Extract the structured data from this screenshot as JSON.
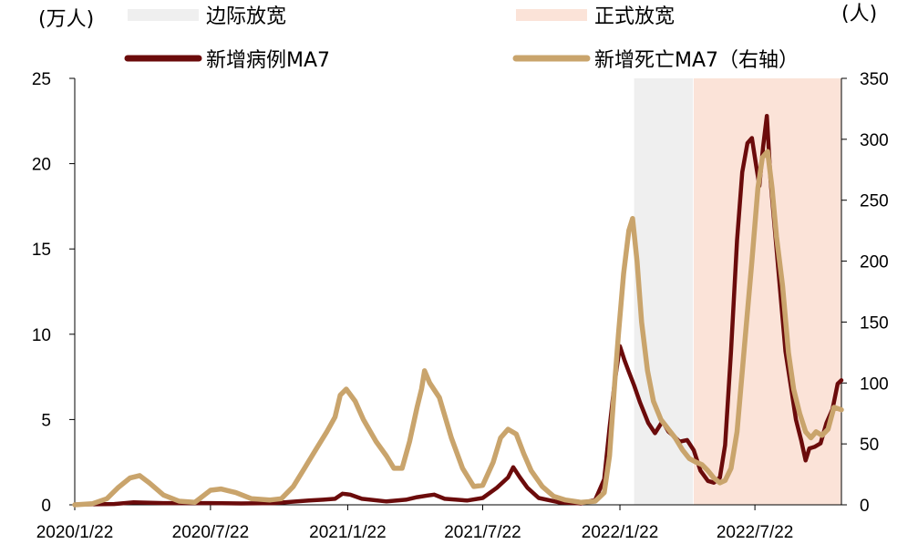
{
  "chart_data": {
    "type": "line",
    "left_unit": "(万人)",
    "right_unit": "(人)",
    "x_tick_labels": [
      "2020/1/22",
      "2020/7/22",
      "2021/1/22",
      "2021/7/22",
      "2022/1/22",
      "2022/7/22"
    ],
    "x_tick_dates": [
      "2020-01-22",
      "2020-07-22",
      "2021-01-22",
      "2021-07-22",
      "2022-01-22",
      "2022-07-22"
    ],
    "x_range": [
      "2020-01-22",
      "2022-11-15"
    ],
    "y_left": {
      "min": 0,
      "max": 25,
      "ticks": [
        0,
        5,
        10,
        15,
        20,
        25
      ]
    },
    "y_right": {
      "min": 0,
      "max": 350,
      "ticks": [
        0,
        50,
        100,
        150,
        200,
        250,
        300,
        350
      ]
    },
    "grid": false,
    "legend_placement": "top",
    "shaded_periods": [
      {
        "name": "边际放宽",
        "start": "2022-02-10",
        "end": "2022-04-30",
        "color": "#efefef"
      },
      {
        "name": "正式放宽",
        "start": "2022-05-01",
        "end": "2022-11-15",
        "color": "#fbe3d8"
      }
    ],
    "series": [
      {
        "name": "新增病例MA7",
        "axis": "left",
        "color": "#6b0b0b",
        "points": [
          [
            "2020-01-22",
            0.02
          ],
          [
            "2020-03-15",
            0.05
          ],
          [
            "2020-04-10",
            0.15
          ],
          [
            "2020-05-20",
            0.1
          ],
          [
            "2020-07-22",
            0.1
          ],
          [
            "2020-09-01",
            0.08
          ],
          [
            "2020-10-15",
            0.1
          ],
          [
            "2020-12-01",
            0.25
          ],
          [
            "2020-12-20",
            0.3
          ],
          [
            "2021-01-05",
            0.35
          ],
          [
            "2021-01-15",
            0.65
          ],
          [
            "2021-01-25",
            0.6
          ],
          [
            "2021-02-10",
            0.35
          ],
          [
            "2021-03-15",
            0.2
          ],
          [
            "2021-04-10",
            0.3
          ],
          [
            "2021-04-25",
            0.45
          ],
          [
            "2021-05-10",
            0.55
          ],
          [
            "2021-05-18",
            0.6
          ],
          [
            "2021-06-01",
            0.35
          ],
          [
            "2021-07-01",
            0.25
          ],
          [
            "2021-07-22",
            0.4
          ],
          [
            "2021-08-10",
            1.0
          ],
          [
            "2021-08-25",
            1.6
          ],
          [
            "2021-09-01",
            2.2
          ],
          [
            "2021-09-10",
            1.6
          ],
          [
            "2021-09-20",
            1.0
          ],
          [
            "2021-10-05",
            0.4
          ],
          [
            "2021-11-01",
            0.15
          ],
          [
            "2021-12-01",
            0.08
          ],
          [
            "2021-12-20",
            0.3
          ],
          [
            "2022-01-01",
            1.5
          ],
          [
            "2022-01-08",
            4.5
          ],
          [
            "2022-01-15",
            7.2
          ],
          [
            "2022-01-22",
            9.3
          ],
          [
            "2022-01-28",
            8.5
          ],
          [
            "2022-02-03",
            7.8
          ],
          [
            "2022-02-10",
            7.0
          ],
          [
            "2022-02-18",
            6.0
          ],
          [
            "2022-03-01",
            4.8
          ],
          [
            "2022-03-10",
            4.2
          ],
          [
            "2022-03-20",
            4.9
          ],
          [
            "2022-03-28",
            4.3
          ],
          [
            "2022-04-05",
            4.0
          ],
          [
            "2022-04-12",
            3.7
          ],
          [
            "2022-04-22",
            3.8
          ],
          [
            "2022-05-01",
            3.2
          ],
          [
            "2022-05-10",
            2.0
          ],
          [
            "2022-05-20",
            1.4
          ],
          [
            "2022-05-28",
            1.3
          ],
          [
            "2022-06-05",
            1.6
          ],
          [
            "2022-06-12",
            3.5
          ],
          [
            "2022-06-20",
            9.0
          ],
          [
            "2022-06-28",
            15.5
          ],
          [
            "2022-07-05",
            19.5
          ],
          [
            "2022-07-12",
            21.2
          ],
          [
            "2022-07-18",
            21.5
          ],
          [
            "2022-07-24",
            19.8
          ],
          [
            "2022-07-28",
            18.7
          ],
          [
            "2022-08-02",
            21.0
          ],
          [
            "2022-08-07",
            22.8
          ],
          [
            "2022-08-12",
            19.0
          ],
          [
            "2022-08-18",
            16.0
          ],
          [
            "2022-08-25",
            12.5
          ],
          [
            "2022-09-01",
            9.0
          ],
          [
            "2022-09-08",
            7.0
          ],
          [
            "2022-09-15",
            5.0
          ],
          [
            "2022-09-22",
            3.8
          ],
          [
            "2022-09-28",
            2.6
          ],
          [
            "2022-10-03",
            3.3
          ],
          [
            "2022-10-10",
            3.4
          ],
          [
            "2022-10-18",
            3.6
          ],
          [
            "2022-10-26",
            4.8
          ],
          [
            "2022-11-03",
            5.6
          ],
          [
            "2022-11-10",
            7.1
          ],
          [
            "2022-11-15",
            7.3
          ]
        ]
      },
      {
        "name": "新增死亡MA7（右轴）",
        "axis": "right",
        "color": "#c9a46c",
        "points": [
          [
            "2020-01-22",
            0
          ],
          [
            "2020-02-15",
            1
          ],
          [
            "2020-03-05",
            5
          ],
          [
            "2020-03-20",
            14
          ],
          [
            "2020-04-05",
            22
          ],
          [
            "2020-04-18",
            24
          ],
          [
            "2020-05-01",
            18
          ],
          [
            "2020-05-20",
            8
          ],
          [
            "2020-06-10",
            3
          ],
          [
            "2020-07-01",
            2
          ],
          [
            "2020-07-22",
            12
          ],
          [
            "2020-08-05",
            13
          ],
          [
            "2020-08-25",
            10
          ],
          [
            "2020-09-15",
            5
          ],
          [
            "2020-10-10",
            4
          ],
          [
            "2020-10-25",
            5
          ],
          [
            "2020-11-10",
            15
          ],
          [
            "2020-11-25",
            30
          ],
          [
            "2020-12-10",
            45
          ],
          [
            "2020-12-25",
            60
          ],
          [
            "2021-01-05",
            72
          ],
          [
            "2021-01-12",
            90
          ],
          [
            "2021-01-20",
            95
          ],
          [
            "2021-02-01",
            85
          ],
          [
            "2021-02-12",
            70
          ],
          [
            "2021-03-01",
            52
          ],
          [
            "2021-03-15",
            40
          ],
          [
            "2021-03-25",
            30
          ],
          [
            "2021-04-05",
            30
          ],
          [
            "2021-04-15",
            52
          ],
          [
            "2021-04-25",
            80
          ],
          [
            "2021-05-01",
            95
          ],
          [
            "2021-05-05",
            110
          ],
          [
            "2021-05-12",
            100
          ],
          [
            "2021-05-25",
            88
          ],
          [
            "2021-06-10",
            55
          ],
          [
            "2021-06-25",
            30
          ],
          [
            "2021-07-10",
            15
          ],
          [
            "2021-07-22",
            16
          ],
          [
            "2021-08-05",
            35
          ],
          [
            "2021-08-15",
            55
          ],
          [
            "2021-08-25",
            62
          ],
          [
            "2021-09-05",
            58
          ],
          [
            "2021-09-15",
            42
          ],
          [
            "2021-09-25",
            28
          ],
          [
            "2021-10-10",
            15
          ],
          [
            "2021-10-25",
            7
          ],
          [
            "2021-11-10",
            4
          ],
          [
            "2021-12-01",
            2
          ],
          [
            "2021-12-20",
            3
          ],
          [
            "2022-01-01",
            10
          ],
          [
            "2022-01-08",
            40
          ],
          [
            "2022-01-15",
            100
          ],
          [
            "2022-01-20",
            140
          ],
          [
            "2022-01-27",
            190
          ],
          [
            "2022-02-03",
            225
          ],
          [
            "2022-02-08",
            235
          ],
          [
            "2022-02-14",
            200
          ],
          [
            "2022-02-20",
            150
          ],
          [
            "2022-02-28",
            110
          ],
          [
            "2022-03-08",
            85
          ],
          [
            "2022-03-18",
            70
          ],
          [
            "2022-03-28",
            62
          ],
          [
            "2022-04-06",
            55
          ],
          [
            "2022-04-16",
            45
          ],
          [
            "2022-04-25",
            38
          ],
          [
            "2022-05-04",
            35
          ],
          [
            "2022-05-12",
            33
          ],
          [
            "2022-05-20",
            28
          ],
          [
            "2022-05-28",
            22
          ],
          [
            "2022-06-05",
            18
          ],
          [
            "2022-06-12",
            20
          ],
          [
            "2022-06-20",
            30
          ],
          [
            "2022-06-28",
            60
          ],
          [
            "2022-07-08",
            130
          ],
          [
            "2022-07-18",
            200
          ],
          [
            "2022-07-26",
            260
          ],
          [
            "2022-08-01",
            285
          ],
          [
            "2022-08-08",
            290
          ],
          [
            "2022-08-14",
            260
          ],
          [
            "2022-08-20",
            220
          ],
          [
            "2022-08-28",
            180
          ],
          [
            "2022-09-05",
            125
          ],
          [
            "2022-09-12",
            95
          ],
          [
            "2022-09-20",
            75
          ],
          [
            "2022-09-28",
            60
          ],
          [
            "2022-10-05",
            55
          ],
          [
            "2022-10-12",
            60
          ],
          [
            "2022-10-20",
            57
          ],
          [
            "2022-10-28",
            62
          ],
          [
            "2022-11-05",
            80
          ],
          [
            "2022-11-15",
            78
          ]
        ]
      }
    ]
  }
}
